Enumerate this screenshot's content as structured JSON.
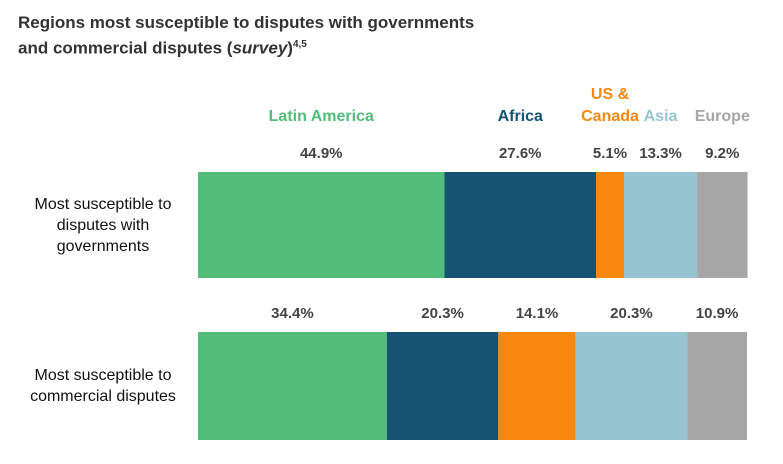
{
  "chart_data": {
    "type": "stacked-bar-horizontal",
    "title": [
      "Regions most susceptible to disputes with governments",
      "and commercial disputes (",
      "survey",
      ")"
    ],
    "title_superscript": "4,5",
    "categories": [
      "Most susceptible to disputes with governments",
      "Most susceptible to commercial disputes"
    ],
    "xlim": [
      0,
      100
    ],
    "series": [
      {
        "name": "Latin America",
        "color": "#52bd7b",
        "values": [
          44.9,
          34.4
        ],
        "value_labels": [
          "44.9%",
          "34.4%"
        ]
      },
      {
        "name": "Africa",
        "color": "#155273",
        "values": [
          27.6,
          20.3
        ],
        "value_labels": [
          "27.6%",
          "20.3%"
        ]
      },
      {
        "name": "US & Canada",
        "color": "#f7870f",
        "values": [
          5.1,
          14.1
        ],
        "value_labels": [
          "5.1%",
          "14.1%"
        ]
      },
      {
        "name": "Asia",
        "color": "#96c5d1",
        "values": [
          13.3,
          20.3
        ],
        "value_labels": [
          "13.3%",
          "20.3%"
        ]
      },
      {
        "name": "Europe",
        "color": "#a6a6a6",
        "values": [
          9.2,
          10.9
        ],
        "value_labels": [
          "9.2%",
          "10.9%"
        ]
      }
    ]
  }
}
